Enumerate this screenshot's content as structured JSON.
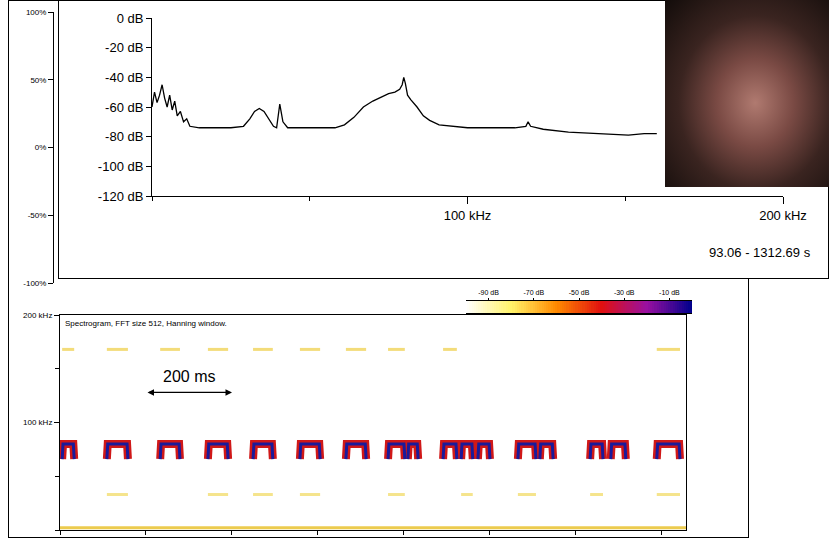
{
  "chart_data": [
    {
      "type": "line",
      "ylim": [
        -100,
        100
      ],
      "yticks": [
        {
          "value": 100,
          "label": "100%"
        },
        {
          "value": 50,
          "label": "50%"
        },
        {
          "value": 0,
          "label": "0%"
        },
        {
          "value": -50,
          "label": "-50%"
        },
        {
          "value": -100,
          "label": "-100%"
        }
      ],
      "tick_labels": "y"
    },
    {
      "type": "line",
      "color": "#000000",
      "x": [
        0,
        0.8,
        1.6,
        2.4,
        3.2,
        4.0,
        4.8,
        5.6,
        6.4,
        7.2,
        8.0,
        9.0,
        10.0,
        11.0,
        12.0,
        15,
        20,
        25,
        29,
        31,
        32.5,
        34,
        35.5,
        37,
        38.5,
        39.5,
        40,
        40.5,
        41.5,
        43,
        50,
        55,
        58,
        61,
        64,
        67,
        70,
        73,
        75,
        77,
        78.5,
        79.3,
        79.8,
        80.3,
        81,
        82,
        84,
        86,
        88,
        91,
        96,
        100,
        108,
        115,
        118.5,
        119.2,
        120,
        124,
        132,
        140,
        147,
        151,
        156,
        160
      ],
      "values": [
        -60,
        -50,
        -57,
        -52,
        -45,
        -54,
        -60,
        -52,
        -62,
        -56,
        -66,
        -63,
        -70,
        -68,
        -73,
        -74,
        -74,
        -74,
        -73,
        -68,
        -63,
        -61,
        -63,
        -68,
        -73,
        -74,
        -66,
        -58,
        -70,
        -74,
        -74,
        -74,
        -74,
        -72,
        -67,
        -60,
        -56,
        -53,
        -51,
        -50,
        -48,
        -45,
        -40,
        -44,
        -52,
        -55,
        -60,
        -66,
        -69,
        -72,
        -73,
        -74,
        -74,
        -74,
        -73,
        -70,
        -73,
        -75,
        -77,
        -78,
        -79,
        -79,
        -78,
        -78
      ],
      "xlim": [
        0,
        200
      ],
      "xticks": [
        {
          "value": 100,
          "label": "100 kHz"
        },
        {
          "value": 200,
          "label": "200 kHz"
        }
      ],
      "ylim": [
        -120,
        0
      ],
      "yticks": [
        {
          "value": 0,
          "label": "0 dB"
        },
        {
          "value": -20,
          "label": "-20 dB"
        },
        {
          "value": -40,
          "label": "-40 dB"
        },
        {
          "value": -60,
          "label": "-60 dB"
        },
        {
          "value": -80,
          "label": "-80 dB"
        },
        {
          "value": -100,
          "label": "-100 dB"
        },
        {
          "value": -120,
          "label": "-120 dB"
        }
      ],
      "grid": false,
      "annotations": [
        {
          "text": "93.06 - 1312.69 s"
        }
      ]
    },
    {
      "type": "line",
      "title": "Spectrogram, FFT size 512, Hanning window.",
      "series": [
        {
          "color": "#d01818",
          "x": [
            5,
            7,
            31,
            33,
            null,
            109,
            111,
            156,
            158,
            null,
            233,
            235,
            277,
            279,
            null,
            344,
            346,
            389,
            391,
            null,
            449,
            451,
            493,
            495,
            null,
            558,
            560,
            603,
            605,
            null,
            665,
            667,
            710,
            712,
            null,
            763,
            765,
            800,
            802,
            null,
            809,
            811,
            831,
            833,
            null,
            891,
            893,
            921,
            923,
            null,
            933,
            935,
            958,
            960,
            null,
            972,
            974,
            998,
            1000,
            null,
            1065,
            1067,
            1105,
            1107,
            null,
            1116,
            1118,
            1145,
            1147,
            null,
            1233,
            1235,
            1261,
            1263,
            null,
            1281,
            1283,
            1314,
            1316,
            null,
            1388,
            1390,
            1440,
            1442
          ],
          "values": [
            66,
            80,
            80,
            66,
            null,
            66,
            80,
            80,
            66,
            null,
            66,
            80,
            80,
            66,
            null,
            66,
            80,
            80,
            66,
            null,
            66,
            80,
            80,
            66,
            null,
            66,
            80,
            80,
            66,
            null,
            66,
            80,
            80,
            66,
            null,
            66,
            80,
            80,
            66,
            null,
            66,
            80,
            80,
            66,
            null,
            66,
            80,
            80,
            66,
            null,
            66,
            80,
            80,
            66,
            null,
            66,
            80,
            80,
            66,
            null,
            66,
            80,
            80,
            66,
            null,
            66,
            80,
            80,
            66,
            null,
            66,
            80,
            80,
            66,
            null,
            66,
            80,
            80,
            66,
            null,
            66,
            80,
            80,
            66
          ]
        },
        {
          "color": "#f3dc7a",
          "x": [
            5,
            33,
            null,
            109,
            158,
            null,
            233,
            279,
            null,
            344,
            391,
            null,
            449,
            495,
            null,
            558,
            605,
            null,
            665,
            712,
            null,
            763,
            802,
            null,
            891,
            923,
            null,
            1388,
            1442
          ],
          "values": [
            168,
            168,
            null,
            168,
            168,
            null,
            168,
            168,
            null,
            168,
            168,
            null,
            168,
            168,
            null,
            168,
            168,
            null,
            168,
            168,
            null,
            168,
            168,
            null,
            168,
            168,
            null,
            168,
            168
          ]
        },
        {
          "color": "#f5e48c",
          "x": [
            109,
            158,
            null,
            344,
            391,
            null,
            449,
            495,
            null,
            558,
            605,
            null,
            763,
            802,
            null,
            933,
            960,
            null,
            1065,
            1107,
            null,
            1233,
            1263,
            null,
            1388,
            1442
          ],
          "values": [
            33,
            33,
            null,
            33,
            33,
            null,
            33,
            33,
            null,
            33,
            33,
            null,
            33,
            33,
            null,
            33,
            33,
            null,
            33,
            33,
            null,
            33,
            33,
            null,
            33,
            33
          ]
        },
        {
          "color": "#eccb4e",
          "x": [
            0,
            1456
          ],
          "values": [
            2,
            2
          ]
        }
      ],
      "xlim": [
        0,
        1456
      ],
      "xticks": [
        0,
        200,
        400,
        600,
        800,
        1000,
        1200,
        1400
      ],
      "ylim": [
        0,
        200
      ],
      "yticks": [
        {
          "value": 100,
          "label": "100 kHz"
        },
        {
          "value": 200,
          "label": "200 kHz"
        }
      ],
      "tick_labels": "y",
      "grid": false,
      "annotations": [
        {
          "text": "200 ms",
          "x": [
            200,
            400
          ],
          "y": 128
        }
      ],
      "colorbar": {
        "range": [
          -100,
          0
        ],
        "ticks": [
          {
            "value": -90,
            "label": "-90 dB"
          },
          {
            "value": -70,
            "label": "-70 dB"
          },
          {
            "value": -50,
            "label": "-50 dB"
          },
          {
            "value": -30,
            "label": "-30 dB"
          },
          {
            "value": -10,
            "label": "-10 dB"
          }
        ],
        "colors": [
          "#ffffff",
          "#fff36a",
          "#ff8a00",
          "#e01010",
          "#9a10a0",
          "#00008c"
        ]
      }
    }
  ]
}
